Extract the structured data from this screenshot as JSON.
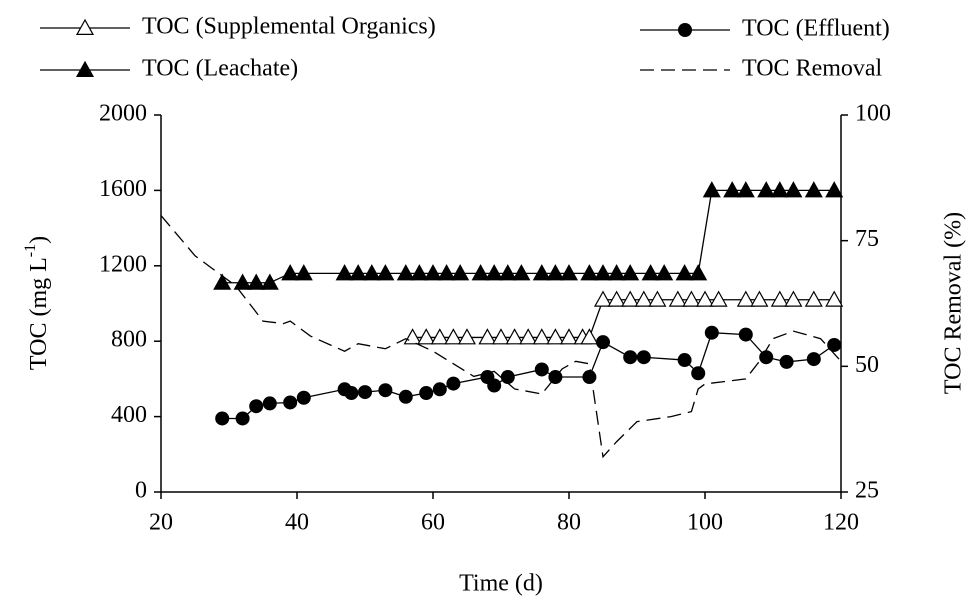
{
  "chart_data": {
    "type": "line",
    "xlabel": "Time (d)",
    "ylabel_parts": [
      "TOC (mg L",
      "-1",
      ")"
    ],
    "y2label": "TOC Removal (%)",
    "xlim": [
      20,
      120
    ],
    "xticks": [
      20,
      40,
      60,
      80,
      100,
      120
    ],
    "ylim": [
      0,
      2000
    ],
    "yticks": [
      0,
      400,
      800,
      1200,
      1600,
      2000
    ],
    "y2lim": [
      25,
      100
    ],
    "y2ticks": [
      25,
      50,
      75,
      100
    ],
    "series": [
      {
        "name": "TOC (Supplemental Organics)",
        "color": "#000000",
        "marker": "open-triangle",
        "dash": false,
        "x": [
          57,
          59,
          61,
          63,
          65,
          68,
          70,
          72,
          74,
          76,
          78,
          80,
          82,
          83,
          85,
          87,
          89,
          91,
          93,
          96,
          98,
          100,
          102,
          106,
          108,
          111,
          113,
          116,
          119
        ],
        "values": [
          820,
          820,
          820,
          820,
          820,
          820,
          820,
          820,
          820,
          820,
          820,
          820,
          820,
          820,
          1020,
          1020,
          1020,
          1020,
          1020,
          1020,
          1020,
          1020,
          1020,
          1020,
          1020,
          1020,
          1020,
          1020,
          1020
        ]
      },
      {
        "name": "TOC (Effluent)",
        "color": "#000000",
        "marker": "circle",
        "dash": false,
        "x": [
          29,
          32,
          34,
          36,
          39,
          41,
          47,
          48,
          50,
          53,
          56,
          59,
          61,
          63,
          68,
          69,
          71,
          76,
          78,
          83,
          85,
          89,
          91,
          97,
          99,
          101,
          106,
          109,
          112,
          116,
          119
        ],
        "values": [
          390,
          390,
          455,
          470,
          475,
          500,
          545,
          525,
          530,
          540,
          505,
          525,
          545,
          575,
          610,
          565,
          610,
          650,
          610,
          610,
          795,
          715,
          715,
          700,
          630,
          845,
          835,
          715,
          690,
          705,
          780
        ]
      },
      {
        "name": "TOC (Leachate)",
        "color": "#000000",
        "marker": "filled-triangle",
        "dash": false,
        "x": [
          29,
          32,
          34,
          36,
          39,
          41,
          47,
          49,
          51,
          53,
          56,
          58,
          60,
          62,
          64,
          67,
          69,
          71,
          73,
          76,
          78,
          80,
          83,
          85,
          87,
          89,
          92,
          94,
          97,
          99,
          101,
          104,
          106,
          109,
          111,
          113,
          116,
          119
        ],
        "values": [
          1110,
          1110,
          1110,
          1110,
          1160,
          1160,
          1160,
          1160,
          1160,
          1160,
          1160,
          1160,
          1160,
          1160,
          1160,
          1160,
          1160,
          1160,
          1160,
          1160,
          1160,
          1160,
          1160,
          1160,
          1160,
          1160,
          1160,
          1160,
          1160,
          1160,
          1600,
          1600,
          1600,
          1600,
          1600,
          1600,
          1600,
          1600
        ]
      },
      {
        "name": "TOC Removal",
        "color": "#000000",
        "marker": "none",
        "dash": true,
        "axis": "y2",
        "x": [
          20,
          25,
          31,
          35,
          38,
          39,
          42,
          47,
          49,
          53,
          56,
          60,
          66,
          69,
          72,
          76,
          79,
          81,
          83,
          85,
          87,
          90,
          95,
          98,
          99,
          100,
          106,
          108,
          110,
          113,
          117,
          120
        ],
        "values": [
          80,
          72,
          66,
          59,
          58.5,
          59,
          56,
          53,
          54.5,
          53.5,
          55.5,
          53,
          48,
          49,
          45.5,
          44.5,
          49.5,
          51,
          50.5,
          32,
          35,
          39,
          40,
          41,
          45.5,
          46.5,
          47.5,
          51,
          55.5,
          57,
          55.5,
          51
        ]
      }
    ]
  }
}
